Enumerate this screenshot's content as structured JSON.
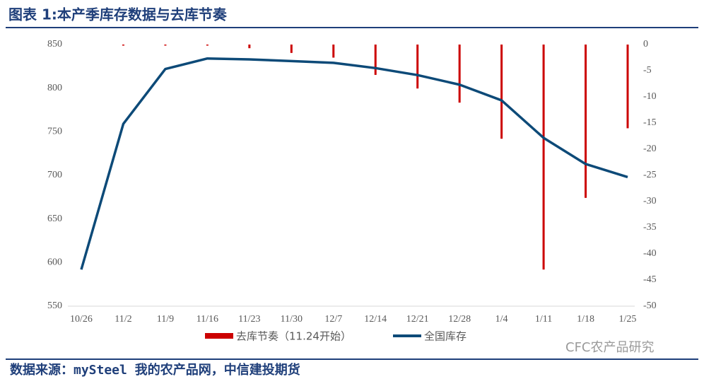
{
  "chart_data": {
    "type": "bar-line",
    "title": "图表 1:本产季库存数据与去库节奏",
    "source": "数据来源：mySteel 我的农产品网，中信建投期货",
    "watermark": "CFC农产品研究",
    "categories": [
      "10/26",
      "11/2",
      "11/9",
      "11/16",
      "11/23",
      "11/30",
      "12/7",
      "12/14",
      "12/21",
      "12/28",
      "1/4",
      "1/11",
      "1/18",
      "1/25"
    ],
    "series": [
      {
        "name": "去库节奏（11.24开始）",
        "color": "#cc0000",
        "type": "bar",
        "axis": "y2",
        "values": [
          null,
          -0.2,
          -0.2,
          -0.2,
          -0.7,
          -1.6,
          -2.5,
          -5.8,
          -8.4,
          -11.1,
          -18,
          -43,
          -29.3,
          -16
        ]
      },
      {
        "name": "全国库存",
        "color": "#0d4a78",
        "type": "line",
        "values": [
          592,
          759,
          822,
          834,
          833,
          831,
          829,
          823,
          815,
          804,
          786,
          743,
          713,
          698
        ]
      }
    ],
    "ylim": [
      550,
      850
    ],
    "yticks": [
      550,
      600,
      650,
      700,
      750,
      800,
      850
    ],
    "y2lim": [
      -50,
      0
    ],
    "y2ticks": [
      -50,
      -45,
      -40,
      -35,
      -30,
      -25,
      -20,
      -15,
      -10,
      -5,
      0
    ],
    "grid": false
  }
}
